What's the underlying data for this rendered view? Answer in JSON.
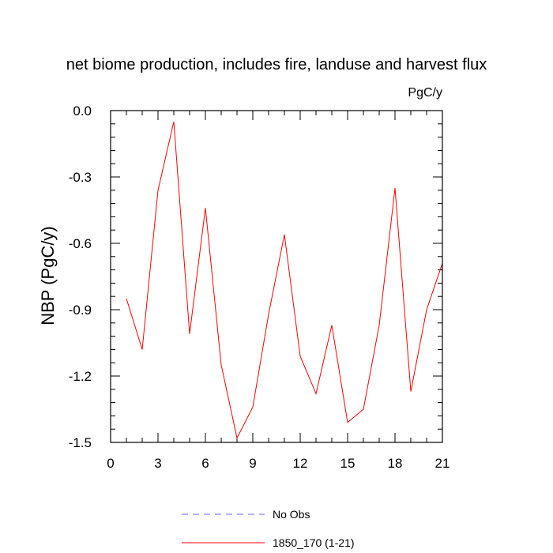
{
  "chart_data": {
    "type": "line",
    "title": "net biome production, includes fire, landuse and harvest flux",
    "units_label": "PgC/y",
    "ylabel": "NBP  (PgC/y)",
    "xlabel": "",
    "xlim": [
      0,
      21
    ],
    "ylim": [
      -1.5,
      0.0
    ],
    "xticks": [
      0,
      3,
      6,
      9,
      12,
      15,
      18,
      21
    ],
    "xtick_labels": [
      "0",
      "3",
      "6",
      "9",
      "12",
      "15",
      "18",
      "21"
    ],
    "yticks": [
      0.0,
      -0.3,
      -0.6,
      -0.9,
      -1.2,
      -1.5
    ],
    "ytick_labels": [
      "0.0",
      "-0.3",
      "-0.6",
      "-0.9",
      "-1.2",
      "-1.5"
    ],
    "grid": false,
    "legend_placement": "bottom-center",
    "series": [
      {
        "name": "No Obs",
        "color": "#6666ff",
        "style": "dashed",
        "x": [],
        "values": []
      },
      {
        "name": "1850_170 (1-21)",
        "color": "#ff0000",
        "style": "solid",
        "x": [
          1,
          2,
          3,
          4,
          5,
          6,
          7,
          8,
          9,
          10,
          11,
          12,
          13,
          14,
          15,
          16,
          17,
          18,
          19,
          20,
          21
        ],
        "values": [
          -0.85,
          -1.08,
          -0.36,
          -0.05,
          -1.01,
          -0.44,
          -1.15,
          -1.48,
          -1.34,
          -0.92,
          -0.56,
          -1.11,
          -1.28,
          -0.97,
          -1.41,
          -1.35,
          -0.97,
          -0.35,
          -1.27,
          -0.9,
          -0.69
        ]
      }
    ]
  }
}
